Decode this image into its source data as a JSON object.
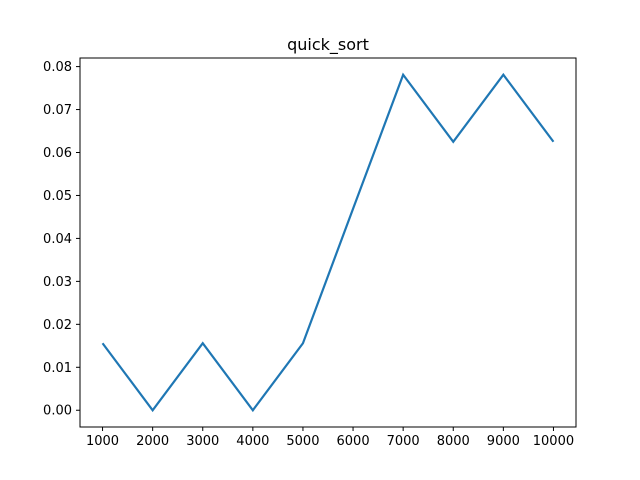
{
  "chart_data": {
    "type": "line",
    "title": "quick_sort",
    "xlabel": "",
    "ylabel": "",
    "x": [
      1000,
      2000,
      3000,
      4000,
      5000,
      6000,
      7000,
      8000,
      9000,
      10000
    ],
    "series": [
      {
        "values": [
          0.0156,
          0.0,
          0.0156,
          0.0,
          0.0156,
          0.0469,
          0.0781,
          0.0625,
          0.0781,
          0.0625
        ]
      }
    ],
    "xlim": [
      550,
      10450
    ],
    "ylim": [
      -0.0039,
      0.082
    ],
    "xticks": [
      1000,
      2000,
      3000,
      4000,
      5000,
      6000,
      7000,
      8000,
      9000,
      10000
    ],
    "xtick_labels": [
      "1000",
      "2000",
      "3000",
      "4000",
      "5000",
      "6000",
      "7000",
      "8000",
      "9000",
      "10000"
    ],
    "yticks": [
      0.0,
      0.01,
      0.02,
      0.03,
      0.04,
      0.05,
      0.06,
      0.07,
      0.08
    ],
    "ytick_labels": [
      "0.00",
      "0.01",
      "0.02",
      "0.03",
      "0.04",
      "0.05",
      "0.06",
      "0.07",
      "0.08"
    ],
    "grid": false,
    "legend": "none",
    "colors": {
      "line": "#1f77b4",
      "axes": "#000000",
      "background": "#ffffff"
    }
  }
}
